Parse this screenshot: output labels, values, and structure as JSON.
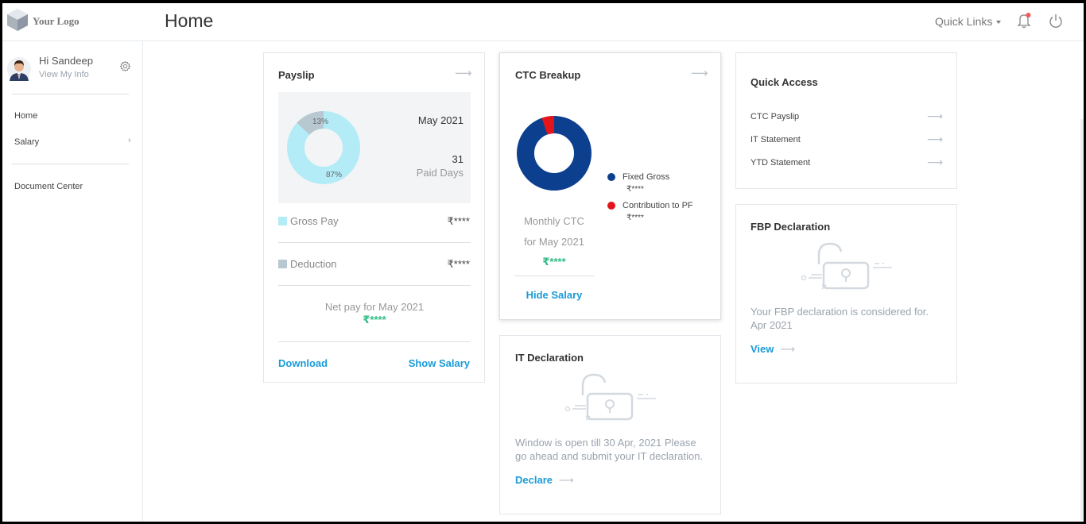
{
  "header": {
    "logo_text": "Your Logo",
    "page_title": "Home",
    "quick_links": "Quick Links"
  },
  "sidebar": {
    "greeting": "Hi Sandeep",
    "view_info": "View My Info",
    "nav": [
      {
        "label": "Home"
      },
      {
        "label": "Salary"
      },
      {
        "label": "Document Center"
      }
    ]
  },
  "payslip": {
    "title": "Payslip",
    "month": "May 2021",
    "paid_days": "31",
    "paid_days_label": "Paid Days",
    "deduction_pct_label": "13%",
    "gross_pct_label": "87%",
    "gross_pay_label": "Gross Pay",
    "gross_pay_value": "₹****",
    "deduction_label": "Deduction",
    "deduction_value": "₹****",
    "net_pay_label": "Net pay for May 2021",
    "net_pay_value": "₹****",
    "download": "Download",
    "show_salary": "Show Salary"
  },
  "ctc": {
    "title": "CTC Breakup",
    "monthly_label": "Monthly CTC",
    "for_label": "for May 2021",
    "value": "₹****",
    "hide_salary": "Hide Salary",
    "legend": [
      {
        "name": "Fixed Gross",
        "value": "₹****",
        "color": "#0d3f8f"
      },
      {
        "name": "Contribution to PF",
        "value": "₹****",
        "color": "#e3151a"
      }
    ]
  },
  "quick_access": {
    "title": "Quick Access",
    "items": [
      {
        "label": "CTC Payslip"
      },
      {
        "label": "IT Statement"
      },
      {
        "label": "YTD Statement"
      }
    ]
  },
  "fbp": {
    "title": "FBP Declaration",
    "description_1": "Your FBP declaration is considered for.",
    "description_2": "Apr 2021",
    "link": "View"
  },
  "it_decl": {
    "title": "IT Declaration",
    "description_1": "Window is open till 30 Apr, 2021 Please",
    "description_2": "go ahead and submit your IT declaration.",
    "link": "Declare"
  },
  "colors": {
    "accent": "#1a9bd7",
    "success": "#2ebd85",
    "gross_segment": "#b3ecf7",
    "deduction_segment": "#b7c8d1",
    "notification_dot": "#f05a5a"
  },
  "icons": {
    "logo": "cube-logo-icon",
    "bell": "bell-icon",
    "power": "power-icon",
    "gear": "gear-icon",
    "arrow": "arrow-right-icon",
    "lock": "unlocked-padlock-icon"
  }
}
